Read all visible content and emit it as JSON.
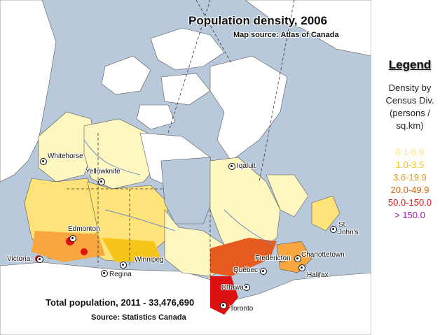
{
  "map": {
    "title": "Population density, 2006",
    "source": "Map source: Atlas of Canada",
    "total_population": "Total population, 2011 - 33,476,690",
    "population_source": "Source: Statistics Canada",
    "cities": [
      {
        "name": "Whitehorse"
      },
      {
        "name": "Yellowknife"
      },
      {
        "name": "Iqaluit"
      },
      {
        "name": "Edmonton"
      },
      {
        "name": "Victoria"
      },
      {
        "name": "Winnipeg"
      },
      {
        "name": "Regina"
      },
      {
        "name": "St. John's"
      },
      {
        "name": "Charlottetown"
      },
      {
        "name": "Fredericton"
      },
      {
        "name": "Québec"
      },
      {
        "name": "Halifax"
      },
      {
        "name": "Ottawa"
      },
      {
        "name": "Toronto"
      }
    ],
    "colors": {
      "water": "#b9c9dc",
      "land_low": "#fff7c0",
      "land_mid": "#fde37a",
      "land_dense": "#f7a640",
      "land_urban": "#e65a1e",
      "land_empty": "#ffffff",
      "us_land": "#ffffff"
    }
  },
  "legend": {
    "title": "Legend",
    "description": "Density by\nCensus Div.\n(persons /\nsq.km)",
    "classes": [
      {
        "label": "0.1-0.9",
        "color": "#ffe57a"
      },
      {
        "label": "1.0-3.5",
        "color": "#f7c41a"
      },
      {
        "label": "3.6-19.9",
        "color": "#e69a10"
      },
      {
        "label": "20.0-49.9",
        "color": "#d4640a"
      },
      {
        "label": "50.0-150.0",
        "color": "#dd1111"
      },
      {
        "label": "> 150.0",
        "color": "#9b1aa8"
      }
    ]
  }
}
